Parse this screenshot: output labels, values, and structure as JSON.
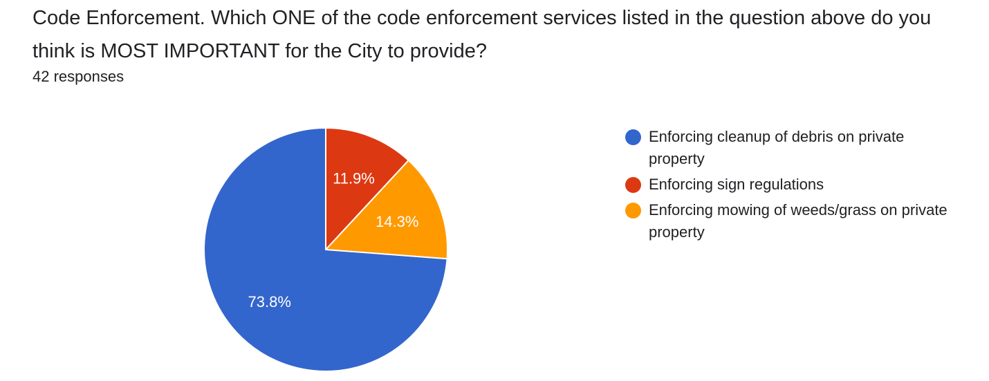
{
  "question": {
    "title": "Code Enforcement.   Which ONE of the code enforcement services listed in the question above do you think is MOST IMPORTANT for the City to provide?",
    "responses_label": "42 responses"
  },
  "chart_data": {
    "type": "pie",
    "title": "Code Enforcement.   Which ONE of the code enforcement services listed in the question above do you think is MOST IMPORTANT for the City to provide?",
    "legend_position": "right",
    "start_angle": "12 o'clock, clockwise",
    "slices": [
      {
        "name": "Enforcing cleanup of debris on private property",
        "value": 73.8,
        "label": "73.8%",
        "color": "#3366cc"
      },
      {
        "name": "Enforcing sign regulations",
        "value": 11.9,
        "label": "11.9%",
        "color": "#dc3912"
      },
      {
        "name": "Enforcing mowing of weeds/grass on private property",
        "value": 14.3,
        "label": "14.3%",
        "color": "#ff9900"
      }
    ],
    "draw_order": [
      1,
      2,
      0
    ]
  }
}
